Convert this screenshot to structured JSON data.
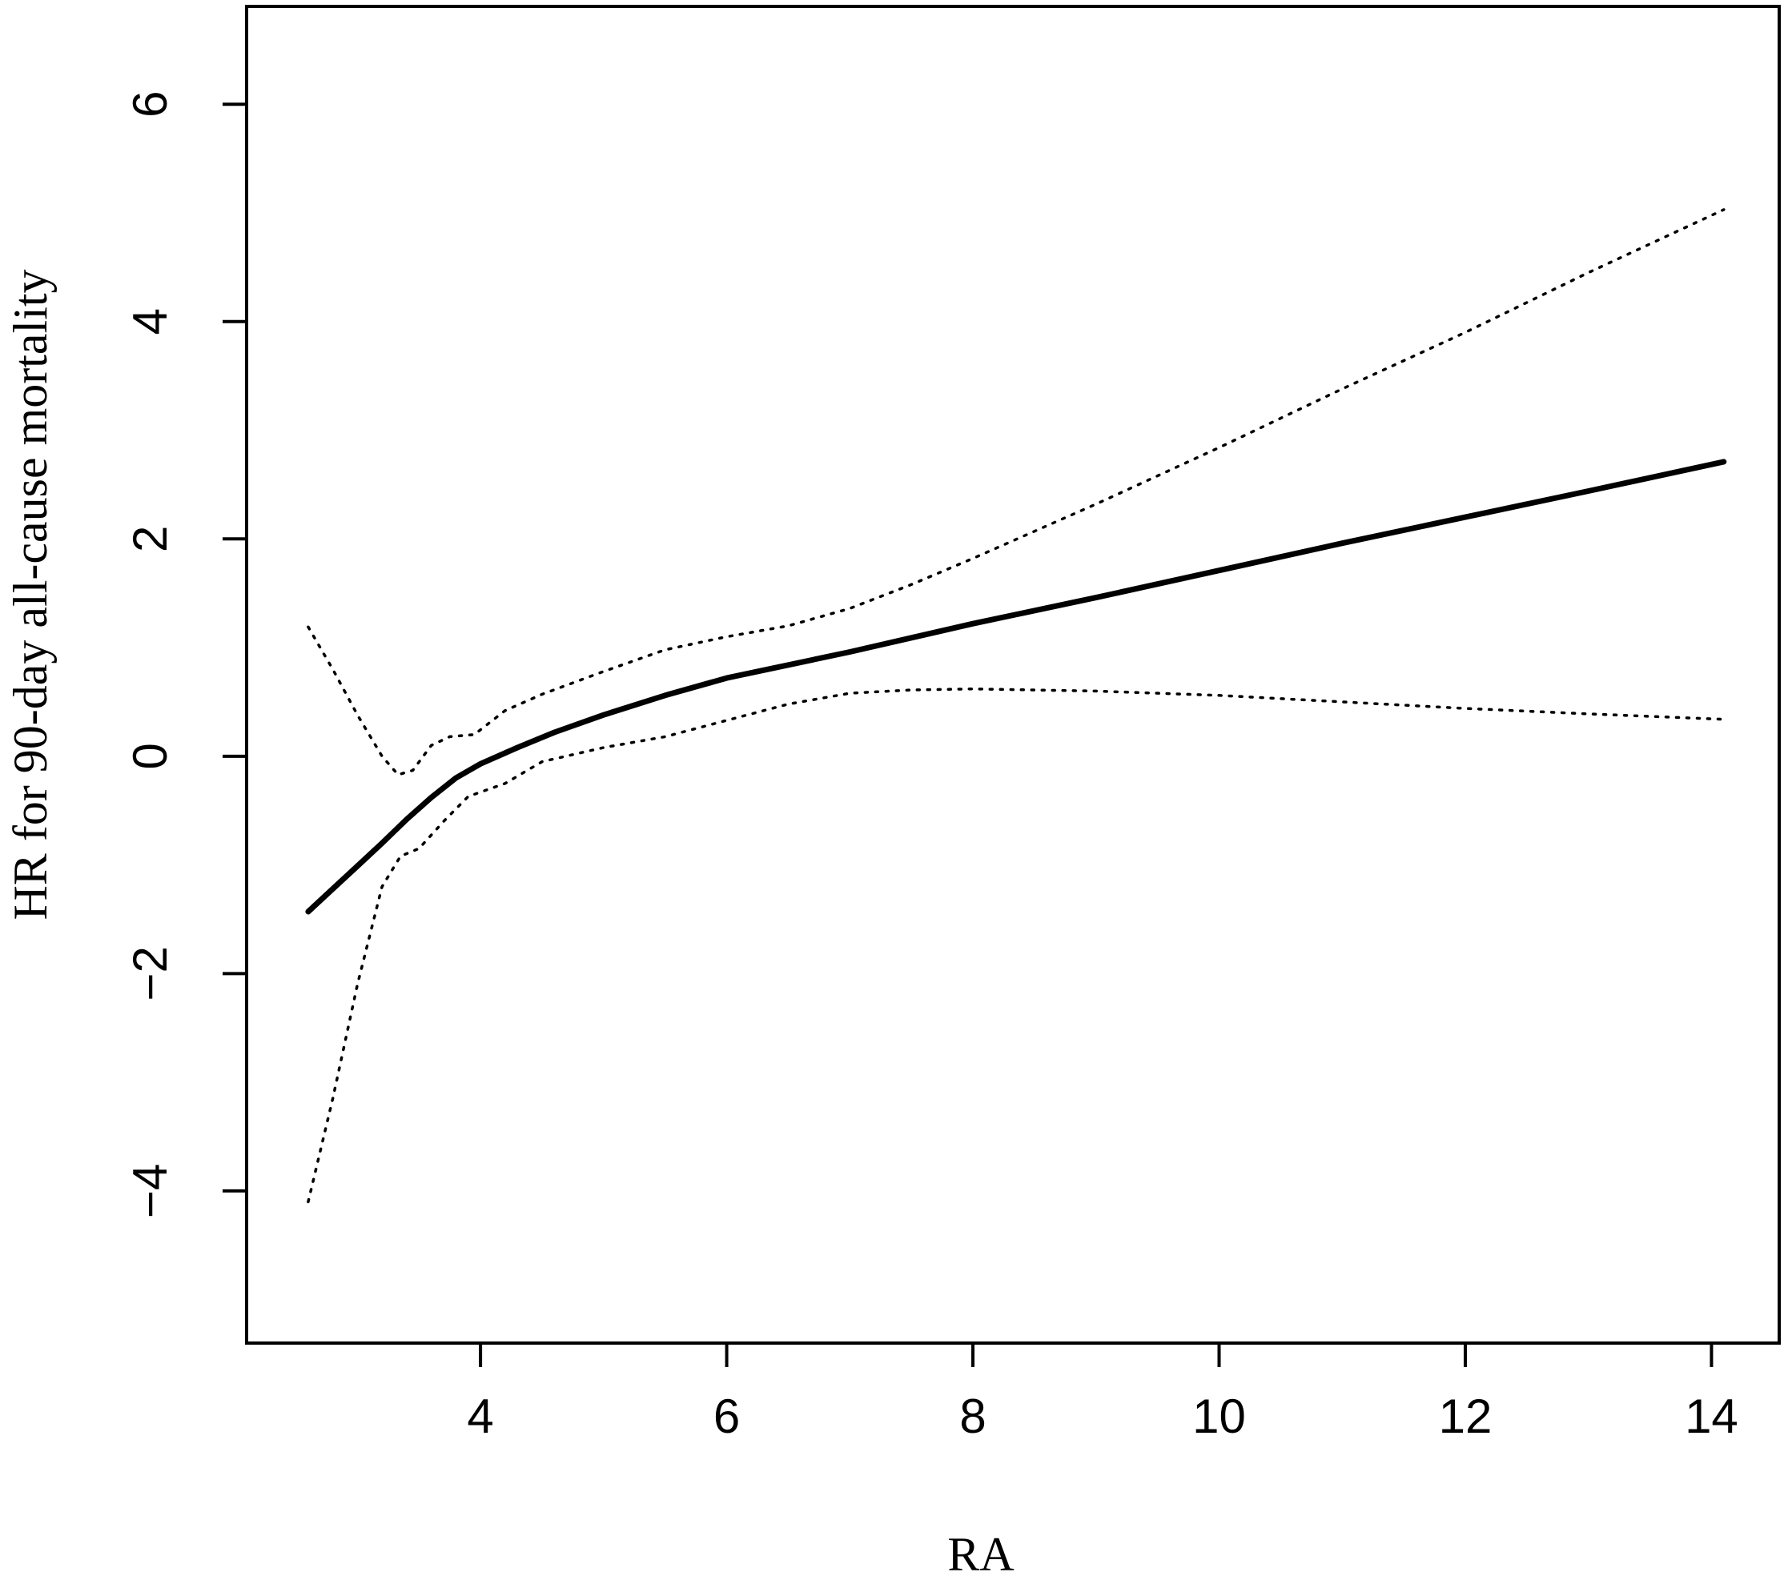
{
  "chart_data": {
    "type": "line",
    "title": "",
    "xlabel": "RA",
    "ylabel": "HR for 90-day all-cause mortality",
    "xlim": [
      2.1,
      14.55
    ],
    "ylim": [
      -5.4,
      6.9
    ],
    "x_ticks": [
      4,
      6,
      8,
      10,
      12,
      14
    ],
    "y_ticks": [
      -4,
      -2,
      0,
      2,
      4,
      6
    ],
    "x_tick_labels": [
      "4",
      "6",
      "8",
      "10",
      "12",
      "14"
    ],
    "y_tick_labels": [
      "−4",
      "−2",
      "0",
      "2",
      "4",
      "6"
    ],
    "grid": false,
    "legend": "none",
    "series": [
      {
        "style": "solid",
        "x": [
          2.6,
          2.8,
          3.0,
          3.2,
          3.4,
          3.6,
          3.8,
          4.0,
          4.3,
          4.6,
          5.0,
          5.5,
          6.0,
          7.0,
          8.0,
          9.0,
          10.0,
          11.0,
          12.0,
          13.0,
          14.1
        ],
        "y": [
          -1.43,
          -1.22,
          -1.01,
          -0.8,
          -0.58,
          -0.38,
          -0.2,
          -0.07,
          0.08,
          0.22,
          0.38,
          0.56,
          0.72,
          0.96,
          1.22,
          1.46,
          1.71,
          1.96,
          2.2,
          2.44,
          2.71
        ]
      },
      {
        "style": "dotted",
        "x": [
          2.6,
          2.8,
          3.0,
          3.2,
          3.33,
          3.45,
          3.6,
          3.75,
          3.95,
          4.2,
          4.5,
          5.0,
          5.5,
          6.0,
          6.5,
          7.0,
          7.5,
          8.0,
          9.0,
          10.0,
          11.0,
          12.0,
          13.0,
          14.1
        ],
        "y": [
          1.19,
          0.8,
          0.38,
          0.0,
          -0.17,
          -0.13,
          0.1,
          0.18,
          0.2,
          0.42,
          0.57,
          0.78,
          0.98,
          1.1,
          1.2,
          1.36,
          1.58,
          1.82,
          2.32,
          2.84,
          3.38,
          3.9,
          4.45,
          5.03
        ]
      },
      {
        "style": "dotted",
        "x": [
          2.6,
          2.8,
          3.0,
          3.2,
          3.35,
          3.5,
          3.7,
          3.9,
          4.2,
          4.5,
          5.0,
          5.5,
          6.0,
          6.5,
          7.0,
          7.5,
          8.0,
          9.0,
          10.0,
          11.0,
          12.0,
          13.0,
          14.1
        ],
        "y": [
          -4.1,
          -3.15,
          -2.1,
          -1.2,
          -0.92,
          -0.85,
          -0.6,
          -0.37,
          -0.25,
          -0.05,
          0.08,
          0.18,
          0.33,
          0.48,
          0.58,
          0.61,
          0.62,
          0.6,
          0.56,
          0.5,
          0.44,
          0.39,
          0.34
        ]
      }
    ]
  }
}
